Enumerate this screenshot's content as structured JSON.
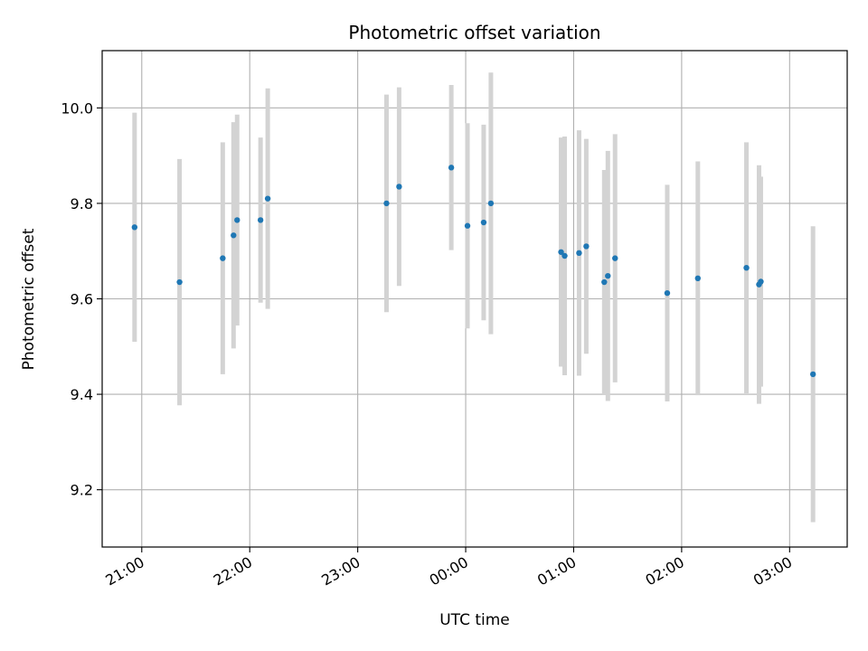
{
  "chart_data": {
    "type": "scatter",
    "title": "Photometric offset variation",
    "xlabel": "UTC time",
    "ylabel": "Photometric offset",
    "grid": true,
    "legend": "none",
    "x_axis": {
      "kind": "time",
      "range": [
        "2000-01-01T20:38",
        "2000-01-02T03:32"
      ],
      "ticks": [
        {
          "t": "2000-01-01T21:00",
          "label": "21:00"
        },
        {
          "t": "2000-01-01T22:00",
          "label": "22:00"
        },
        {
          "t": "2000-01-01T23:00",
          "label": "23:00"
        },
        {
          "t": "2000-01-02T00:00",
          "label": "00:00"
        },
        {
          "t": "2000-01-02T01:00",
          "label": "01:00"
        },
        {
          "t": "2000-01-02T02:00",
          "label": "02:00"
        },
        {
          "t": "2000-01-02T03:00",
          "label": "03:00"
        }
      ]
    },
    "y_axis": {
      "range": [
        9.08,
        10.12
      ],
      "ticks": [
        {
          "v": 9.2,
          "label": "9.2"
        },
        {
          "v": 9.4,
          "label": "9.4"
        },
        {
          "v": 9.6,
          "label": "9.6"
        },
        {
          "v": 9.8,
          "label": "9.8"
        },
        {
          "v": 10.0,
          "label": "10.0"
        }
      ]
    },
    "colors": {
      "point": "#1f77b4",
      "errorbar": "#d3d3d3",
      "grid": "#b0b0b0"
    },
    "points": [
      {
        "t": "2000-01-01T20:56",
        "y": 9.75,
        "err": 0.24
      },
      {
        "t": "2000-01-01T21:21",
        "y": 9.635,
        "err": 0.258
      },
      {
        "t": "2000-01-01T21:45",
        "y": 9.685,
        "err": 0.243
      },
      {
        "t": "2000-01-01T21:51",
        "y": 9.733,
        "err": 0.237
      },
      {
        "t": "2000-01-01T21:53",
        "y": 9.765,
        "err": 0.221
      },
      {
        "t": "2000-01-01T22:06",
        "y": 9.765,
        "err": 0.173
      },
      {
        "t": "2000-01-01T22:10",
        "y": 9.81,
        "err": 0.231
      },
      {
        "t": "2000-01-01T23:16",
        "y": 9.8,
        "err": 0.228
      },
      {
        "t": "2000-01-01T23:23",
        "y": 9.835,
        "err": 0.208
      },
      {
        "t": "2000-01-01T23:52",
        "y": 9.875,
        "err": 0.173
      },
      {
        "t": "2000-01-02T00:01",
        "y": 9.753,
        "err": 0.215
      },
      {
        "t": "2000-01-02T00:10",
        "y": 9.76,
        "err": 0.205
      },
      {
        "t": "2000-01-02T00:14",
        "y": 9.8,
        "err": 0.274
      },
      {
        "t": "2000-01-02T00:53",
        "y": 9.698,
        "err": 0.24
      },
      {
        "t": "2000-01-02T00:55",
        "y": 9.69,
        "err": 0.25
      },
      {
        "t": "2000-01-02T01:03",
        "y": 9.696,
        "err": 0.257
      },
      {
        "t": "2000-01-02T01:07",
        "y": 9.71,
        "err": 0.225
      },
      {
        "t": "2000-01-02T01:17",
        "y": 9.635,
        "err": 0.235
      },
      {
        "t": "2000-01-02T01:19",
        "y": 9.648,
        "err": 0.262
      },
      {
        "t": "2000-01-02T01:23",
        "y": 9.685,
        "err": 0.26
      },
      {
        "t": "2000-01-02T01:52",
        "y": 9.612,
        "err": 0.227
      },
      {
        "t": "2000-01-02T02:09",
        "y": 9.643,
        "err": 0.245
      },
      {
        "t": "2000-01-02T02:36",
        "y": 9.665,
        "err": 0.263
      },
      {
        "t": "2000-01-02T02:43",
        "y": 9.63,
        "err": 0.25
      },
      {
        "t": "2000-01-02T02:44",
        "y": 9.636,
        "err": 0.22
      },
      {
        "t": "2000-01-02T03:13",
        "y": 9.442,
        "err": 0.31
      }
    ]
  }
}
